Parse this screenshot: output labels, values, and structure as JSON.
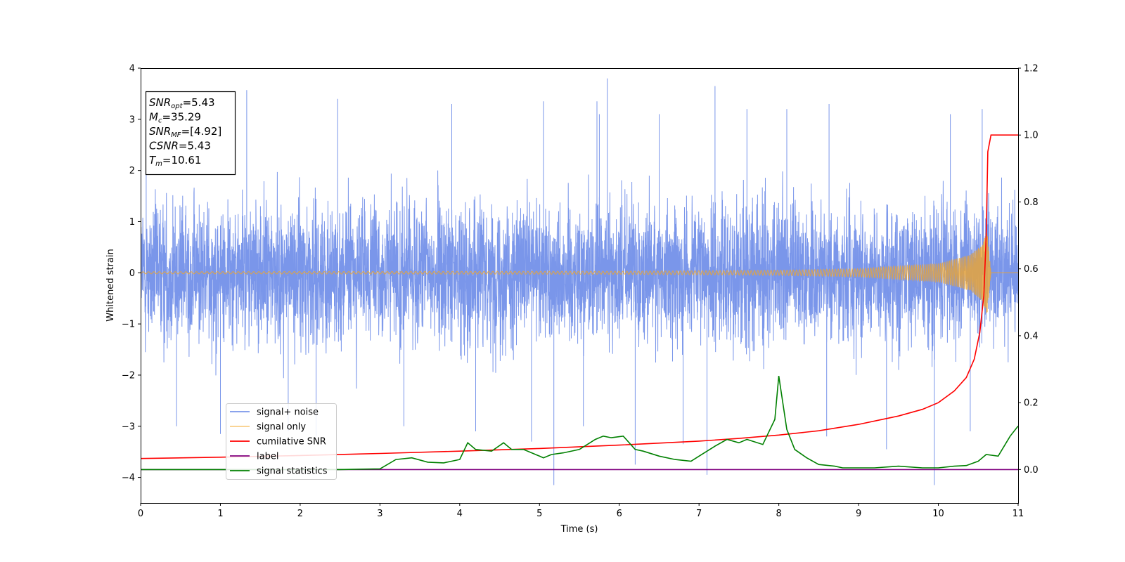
{
  "chart_data": {
    "type": "line",
    "xlabel": "Time (s)",
    "ylabel": "Whitened strain",
    "xlim": [
      0,
      11
    ],
    "ylim_left": [
      -4.5,
      4
    ],
    "ylim_right": [
      -0.1,
      1.2
    ],
    "x_ticks": [
      0,
      1,
      2,
      3,
      4,
      5,
      6,
      7,
      8,
      9,
      10,
      11
    ],
    "y_ticks_left": [
      -4,
      -3,
      -2,
      -1,
      0,
      1,
      2,
      3,
      4
    ],
    "y_ticks_right": [
      0.0,
      0.2,
      0.4,
      0.6,
      0.8,
      1.0,
      1.2
    ],
    "y_tick_labels_left": [
      "−4",
      "−3",
      "−2",
      "−1",
      "0",
      "1",
      "2",
      "3",
      "4"
    ],
    "y_tick_labels_right": [
      "0.0",
      "0.2",
      "0.4",
      "0.6",
      "0.8",
      "1.0",
      "1.2"
    ],
    "x_tick_labels": [
      "0",
      "1",
      "2",
      "3",
      "4",
      "5",
      "6",
      "7",
      "8",
      "9",
      "10",
      "11"
    ],
    "grid": false,
    "legend_position": "bottom-left",
    "annotation": {
      "lines": [
        {
          "name": "SNR",
          "sub": "opt",
          "value": "=5.43"
        },
        {
          "name": "M",
          "sub": "c",
          "value": "=35.29"
        },
        {
          "name": "SNR",
          "sub": "MF",
          "value": "=[4.92]"
        },
        {
          "name": "CSNR",
          "sub": "",
          "value": "=5.43"
        },
        {
          "name": "T",
          "sub": "m",
          "value": "=10.61"
        }
      ]
    },
    "series": [
      {
        "name": "signal+ noise",
        "color": "#4169e1",
        "axis": "left",
        "kind": "noise",
        "summary": {
          "typical_range": [
            -2.3,
            2.5
          ],
          "extremes": [
            -4.15,
            3.65
          ]
        },
        "spikes": [
          [
            0.07,
            3.25
          ],
          [
            1.33,
            3.57
          ],
          [
            2.47,
            3.4
          ],
          [
            3.9,
            3.3
          ],
          [
            5.05,
            3.35
          ],
          [
            5.72,
            3.35
          ],
          [
            5.75,
            3.1
          ],
          [
            5.85,
            3.8
          ],
          [
            6.5,
            3.1
          ],
          [
            7.2,
            3.65
          ],
          [
            7.6,
            3.2
          ],
          [
            8.1,
            3.2
          ],
          [
            8.63,
            3.3
          ],
          [
            10.15,
            3.1
          ],
          [
            10.55,
            3.2
          ],
          [
            0.45,
            -3.0
          ],
          [
            1.0,
            -3.15
          ],
          [
            1.85,
            -3.1
          ],
          [
            2.2,
            -3.2
          ],
          [
            3.3,
            -3.0
          ],
          [
            4.2,
            -3.1
          ],
          [
            4.9,
            -3.3
          ],
          [
            5.18,
            -4.15
          ],
          [
            5.55,
            -3.0
          ],
          [
            6.2,
            -3.75
          ],
          [
            6.8,
            -3.35
          ],
          [
            7.1,
            -3.95
          ],
          [
            8.6,
            -3.2
          ],
          [
            9.35,
            -3.45
          ],
          [
            9.95,
            -4.15
          ],
          [
            10.4,
            -3.1
          ]
        ]
      },
      {
        "name": "signal only",
        "color": "#f5a623",
        "axis": "left",
        "kind": "chirp",
        "amplitude_points": [
          [
            0,
            0.02
          ],
          [
            6,
            0.03
          ],
          [
            8,
            0.05
          ],
          [
            9,
            0.08
          ],
          [
            10,
            0.18
          ],
          [
            10.4,
            0.35
          ],
          [
            10.55,
            0.55
          ],
          [
            10.61,
            0.85
          ],
          [
            10.66,
            0.0
          ]
        ]
      },
      {
        "name": "cumilative SNR",
        "color": "#ff0000",
        "axis": "right",
        "x": [
          0,
          1,
          2,
          3,
          4,
          5,
          6,
          7,
          7.5,
          8,
          8.5,
          9,
          9.5,
          9.8,
          10,
          10.2,
          10.35,
          10.45,
          10.52,
          10.57,
          10.6,
          10.62,
          10.66,
          11
        ],
        "values": [
          0.033,
          0.037,
          0.042,
          0.048,
          0.055,
          0.063,
          0.073,
          0.085,
          0.093,
          0.103,
          0.116,
          0.135,
          0.16,
          0.18,
          0.2,
          0.235,
          0.275,
          0.33,
          0.41,
          0.52,
          0.7,
          0.95,
          1.0,
          1.0
        ]
      },
      {
        "name": "label",
        "color": "#800080",
        "axis": "right",
        "x": [
          0,
          11
        ],
        "values": [
          0.0,
          0.0
        ]
      },
      {
        "name": "signal statistics",
        "color": "#008000",
        "axis": "right",
        "x": [
          0,
          0.5,
          1,
          1.5,
          2,
          2.5,
          3,
          3.2,
          3.4,
          3.6,
          3.8,
          4.0,
          4.1,
          4.2,
          4.4,
          4.55,
          4.65,
          4.8,
          5.0,
          5.05,
          5.15,
          5.3,
          5.5,
          5.7,
          5.8,
          5.9,
          6.05,
          6.2,
          6.3,
          6.5,
          6.7,
          6.9,
          7.0,
          7.2,
          7.35,
          7.5,
          7.6,
          7.8,
          7.95,
          8.0,
          8.1,
          8.2,
          8.35,
          8.5,
          8.7,
          8.8,
          8.9,
          9.2,
          9.5,
          9.8,
          10.0,
          10.2,
          10.35,
          10.5,
          10.6,
          10.75,
          10.9,
          11.0
        ],
        "values": [
          0.0,
          0.0,
          0.0,
          0.0,
          0.0,
          0.0,
          0.002,
          0.03,
          0.035,
          0.022,
          0.02,
          0.03,
          0.08,
          0.06,
          0.055,
          0.08,
          0.06,
          0.06,
          0.04,
          0.035,
          0.045,
          0.05,
          0.06,
          0.09,
          0.1,
          0.095,
          0.1,
          0.06,
          0.055,
          0.04,
          0.03,
          0.025,
          0.04,
          0.07,
          0.09,
          0.08,
          0.09,
          0.075,
          0.15,
          0.28,
          0.12,
          0.06,
          0.035,
          0.015,
          0.01,
          0.005,
          0.005,
          0.005,
          0.01,
          0.005,
          0.005,
          0.01,
          0.012,
          0.025,
          0.045,
          0.04,
          0.1,
          0.13
        ]
      }
    ]
  }
}
